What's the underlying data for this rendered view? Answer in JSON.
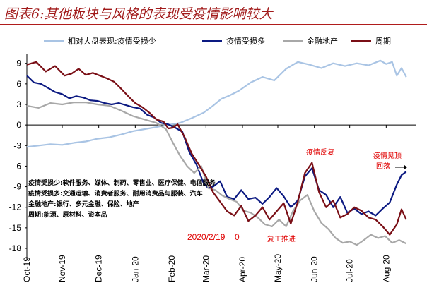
{
  "title": "图表6:其他板块与风格的表现受疫情影响较大",
  "chart_data": {
    "type": "line",
    "title": "图表6:其他板块与风格的表现受疫情影响较大",
    "xlabel": "",
    "ylabel": "",
    "ylim": [
      -18,
      10
    ],
    "yticks": [
      9,
      6,
      3,
      0,
      -3,
      -6,
      -9,
      -12,
      -15,
      -18
    ],
    "ytick_labels": [
      "9",
      "6",
      "3",
      "0",
      "-3",
      "-6",
      "-9",
      "-12",
      "-15",
      "-18"
    ],
    "xticks": [
      0,
      30,
      61,
      92,
      123,
      152,
      183,
      213,
      244,
      274,
      305
    ],
    "xtick_labels": [
      "Oct-19",
      "Nov-19",
      "Dec-19",
      "Jan-20",
      "Feb-20",
      "Mar-20",
      "Apr-20",
      "May-20",
      "Jun-20",
      "Jul-20",
      "Aug-20"
    ],
    "xlim": [
      0,
      330
    ],
    "legend": [
      "相对大盘表现:疫情受损少",
      "疫情受损多",
      "金融地产",
      "周期"
    ],
    "series": [
      {
        "name": "相对大盘表现:疫情受损少",
        "color": "#a9c4e4",
        "x": [
          0,
          10,
          20,
          30,
          40,
          50,
          60,
          70,
          80,
          90,
          100,
          110,
          120,
          130,
          140,
          150,
          158,
          165,
          172,
          180,
          190,
          200,
          210,
          220,
          230,
          240,
          250,
          260,
          270,
          280,
          290,
          300,
          305,
          310,
          314,
          318,
          322
        ],
        "values": [
          -3.2,
          -3.0,
          -2.8,
          -2.9,
          -2.6,
          -2.4,
          -2.0,
          -1.8,
          -1.4,
          -0.9,
          -0.6,
          -0.3,
          0.0,
          0.3,
          1.0,
          1.8,
          2.8,
          3.8,
          4.3,
          5.0,
          6.2,
          7.0,
          6.5,
          8.2,
          9.2,
          8.8,
          8.3,
          9.0,
          8.6,
          9.0,
          8.7,
          9.4,
          8.9,
          9.2,
          7.2,
          8.3,
          7.0
        ]
      },
      {
        "name": "疫情受损多",
        "color": "#0c1a82",
        "x": [
          0,
          6,
          12,
          18,
          24,
          30,
          36,
          42,
          48,
          54,
          60,
          66,
          72,
          78,
          84,
          90,
          96,
          102,
          108,
          114,
          120,
          126,
          132,
          138,
          144,
          150,
          154,
          158,
          164,
          170,
          176,
          182,
          188,
          194,
          200,
          206,
          212,
          218,
          224,
          230,
          236,
          242,
          248,
          254,
          260,
          266,
          272,
          278,
          284,
          290,
          296,
          302,
          308,
          314,
          318,
          322
        ],
        "values": [
          7.2,
          6.2,
          6.0,
          5.4,
          4.8,
          4.5,
          3.9,
          4.2,
          4.0,
          3.6,
          3.5,
          3.2,
          3.0,
          3.2,
          2.9,
          2.6,
          2.4,
          1.5,
          1.1,
          0.3,
          0.1,
          -0.4,
          -1.0,
          -4.0,
          -5.8,
          -8.5,
          -9.2,
          -9.0,
          -8.2,
          -10.5,
          -10.8,
          -9.5,
          -10.8,
          -10.6,
          -11.5,
          -10.5,
          -9.2,
          -10.4,
          -12.0,
          -11.0,
          -7.5,
          -6.3,
          -9.5,
          -10.2,
          -12.0,
          -10.5,
          -12.8,
          -12.2,
          -13.0,
          -12.6,
          -13.2,
          -12.2,
          -11.3,
          -8.7,
          -7.3,
          -6.8
        ]
      },
      {
        "name": "金融地产",
        "color": "#a8a8a8",
        "x": [
          0,
          10,
          20,
          30,
          40,
          50,
          60,
          70,
          80,
          90,
          100,
          110,
          118,
          124,
          130,
          136,
          142,
          148,
          154,
          160,
          166,
          172,
          178,
          184,
          190,
          196,
          202,
          208,
          214,
          220,
          226,
          232,
          238,
          244,
          250,
          256,
          262,
          268,
          274,
          280,
          286,
          292,
          298,
          304,
          310,
          316,
          322
        ],
        "values": [
          2.8,
          2.5,
          3.2,
          3.0,
          3.3,
          3.3,
          3.0,
          2.8,
          2.1,
          1.3,
          0.8,
          0.3,
          -0.6,
          -2.6,
          -4.5,
          -6.0,
          -7.0,
          -6.0,
          -9.2,
          -9.5,
          -10.3,
          -10.8,
          -11.2,
          -12.5,
          -12.8,
          -13.5,
          -14.5,
          -14.8,
          -13.8,
          -14.8,
          -12.5,
          -11.0,
          -10.2,
          -12.6,
          -14.3,
          -15.2,
          -16.5,
          -17.2,
          -17.0,
          -17.5,
          -16.8,
          -16.0,
          -16.5,
          -16.2,
          -17.2,
          -16.8,
          -17.3
        ]
      },
      {
        "name": "周期",
        "color": "#7a0f16",
        "x": [
          0,
          8,
          16,
          24,
          32,
          38,
          44,
          50,
          56,
          62,
          68,
          74,
          80,
          86,
          92,
          98,
          104,
          110,
          116,
          120,
          124,
          128,
          134,
          140,
          146,
          152,
          158,
          164,
          170,
          176,
          182,
          188,
          194,
          200,
          206,
          212,
          218,
          224,
          230,
          236,
          242,
          248,
          254,
          260,
          266,
          272,
          278,
          284,
          290,
          296,
          302,
          308,
          314,
          318,
          322
        ],
        "values": [
          8.8,
          9.2,
          7.8,
          8.6,
          7.2,
          7.5,
          8.2,
          7.3,
          7.6,
          7.2,
          6.8,
          6.3,
          5.3,
          4.2,
          3.2,
          2.6,
          1.8,
          0.8,
          0.5,
          -0.5,
          -0.4,
          0.1,
          -1.8,
          -4.2,
          -5.8,
          -7.5,
          -9.8,
          -11.2,
          -12.6,
          -13.2,
          -11.8,
          -14.0,
          -13.2,
          -12.0,
          -13.8,
          -12.6,
          -11.4,
          -14.4,
          -11.2,
          -7.0,
          -5.5,
          -9.8,
          -12.0,
          -11.0,
          -13.5,
          -13.0,
          -12.0,
          -12.5,
          -13.5,
          -13.8,
          -14.8,
          -16.0,
          -14.5,
          -12.3,
          -13.8
        ]
      }
    ]
  },
  "notes": [
    "疫情受损少:软件服务、媒体、制药、零售业、医疗保健、电信服务",
    "疫情受损多:交通运输、消费者服务、耐用消费品与服装、汽车",
    "金融地产:银行、多元金融、保险、地产",
    "周期:能源、原材料、资本品"
  ],
  "annotations": {
    "base_date": "2020/2/19 = 0",
    "resume_work": "复工推进",
    "covid_rebound": "疫情反复",
    "covid_peak_line1": "疫情见顶",
    "covid_peak_line2": "回落"
  }
}
